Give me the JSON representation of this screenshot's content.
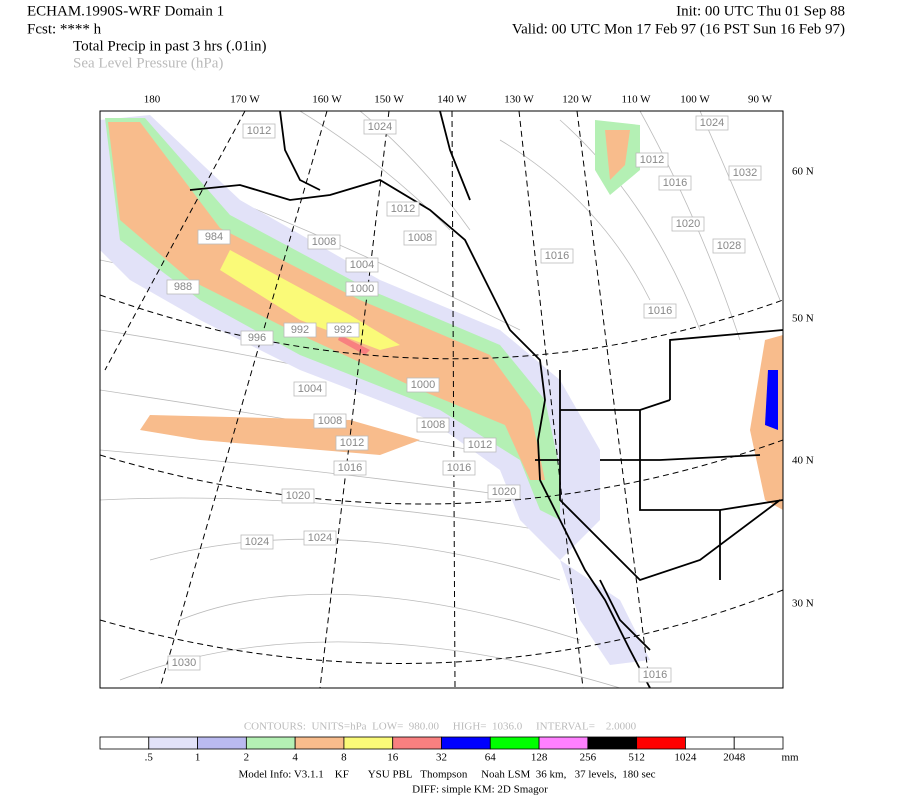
{
  "header": {
    "title": "ECHAM.1990S-WRF Domain 1",
    "init": "Init: 00 UTC Thu 01 Sep 88",
    "fcst": "Fcst: **** h",
    "valid": "Valid: 00 UTC Mon 17 Feb 97 (16 PST Sun 16 Feb 97)",
    "field1": "Total Precip in past 3 hrs (.01in)",
    "field2": "Sea Level Pressure (hPa)"
  },
  "map": {
    "lon_labels": [
      "180",
      "170 W",
      "160 W",
      "150 W",
      "140 W",
      "130 W",
      "120 W",
      "110 W",
      "100 W",
      "90 W"
    ],
    "lat_labels": [
      "60 N",
      "50 N",
      "40 N",
      "30 N"
    ],
    "isobar_labels": [
      "1012",
      "1024",
      "1012",
      "1008",
      "1008",
      "1004",
      "1000",
      "1016",
      "1020",
      "1028",
      "1016",
      "1012",
      "1016",
      "1024",
      "1032",
      "984",
      "988",
      "992",
      "992",
      "996",
      "1004",
      "1000",
      "1008",
      "1008",
      "1012",
      "1012",
      "1016",
      "1016",
      "1020",
      "1020",
      "1024",
      "1024",
      "1030",
      "1016"
    ]
  },
  "colorbar": {
    "labels": [
      ".5",
      "1",
      "2",
      "4",
      "8",
      "16",
      "32",
      "64",
      "128",
      "256",
      "512",
      "1024",
      "2048"
    ],
    "units": "mm",
    "colors": [
      "#ffffff",
      "#e2e2f8",
      "#babaf0",
      "#b4f0b4",
      "#f8bc8c",
      "#fafa78",
      "#f88080",
      "#0000ff",
      "#00ff00",
      "#ff80ff",
      "#000000",
      "#ff0000",
      "#ffffff",
      "#ffffff"
    ]
  },
  "footer": {
    "contours": "CONTOURS:  UNITS=hPa  LOW=  980.00     HIGH=  1036.0     INTERVAL=    2.0000",
    "model_info": "Model Info: V3.1.1    KF       YSU PBL   Thompson     Noah LSM  36 km,   37 levels,  180 sec",
    "diff": "DIFF: simple KM: 2D Smagor"
  }
}
